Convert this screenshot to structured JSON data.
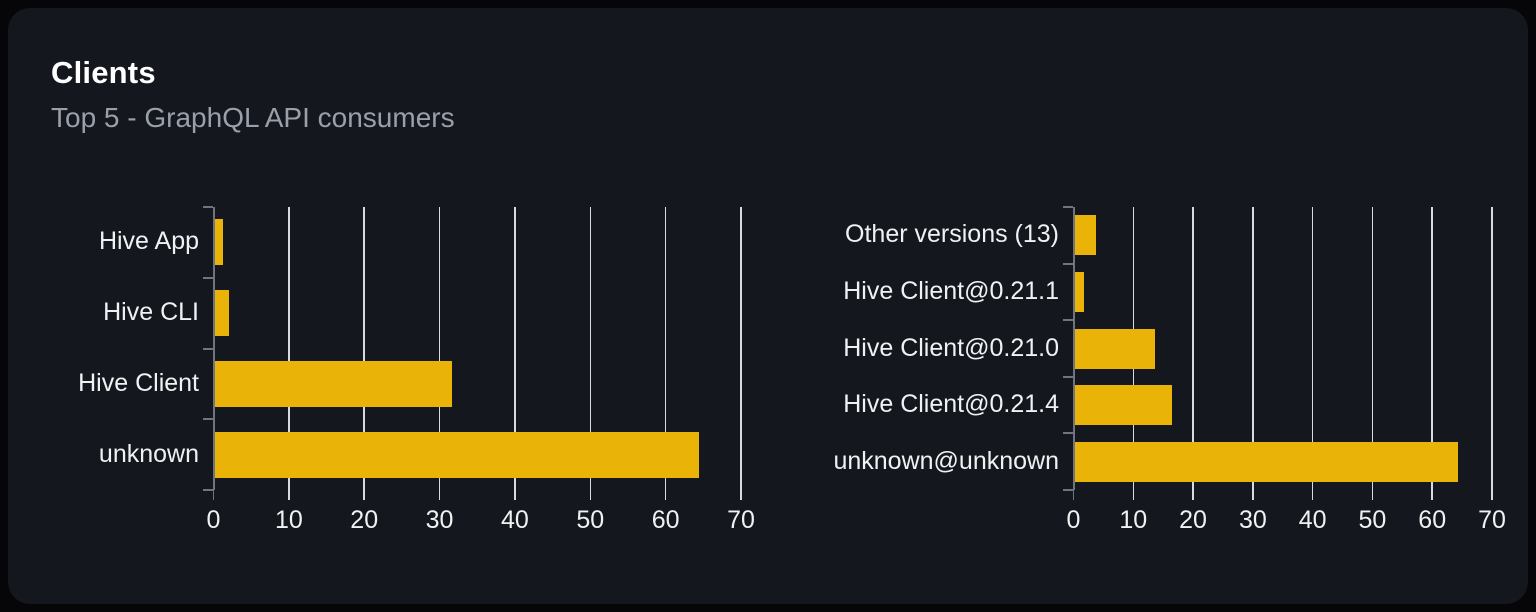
{
  "panel": {
    "title": "Clients",
    "subtitle": "Top 5 - GraphQL API consumers"
  },
  "colors": {
    "page_bg": "#060608",
    "card_bg": "#14171d",
    "bar": "#eab308",
    "grid_line": "#d7dade",
    "axis_line": "#70747e",
    "title_text": "#ffffff",
    "subtitle_text": "#9aa0aa",
    "label_text": "#eff1f3"
  },
  "chart_data": [
    {
      "type": "bar",
      "orientation": "horizontal",
      "name": "clients-by-name",
      "categories": [
        "Hive App",
        "Hive CLI",
        "Hive Client",
        "unknown"
      ],
      "values": [
        1.3,
        2,
        31.6,
        64.4
      ],
      "xlim": [
        0,
        70
      ],
      "xticks": [
        0,
        10,
        20,
        30,
        40,
        50,
        60,
        70
      ],
      "grid": "vertical",
      "legend": false,
      "bar_color": "#eab308"
    },
    {
      "type": "bar",
      "orientation": "horizontal",
      "name": "clients-by-version",
      "categories": [
        "Other versions (13)",
        "Hive Client@0.21.1",
        "Hive Client@0.21.0",
        "Hive Client@0.21.4",
        "unknown@unknown"
      ],
      "values": [
        3.8,
        1.8,
        13.7,
        16.4,
        64.3
      ],
      "xlim": [
        0,
        70
      ],
      "xticks": [
        0,
        10,
        20,
        30,
        40,
        50,
        60,
        70
      ],
      "grid": "vertical",
      "legend": false,
      "bar_color": "#eab308"
    }
  ]
}
